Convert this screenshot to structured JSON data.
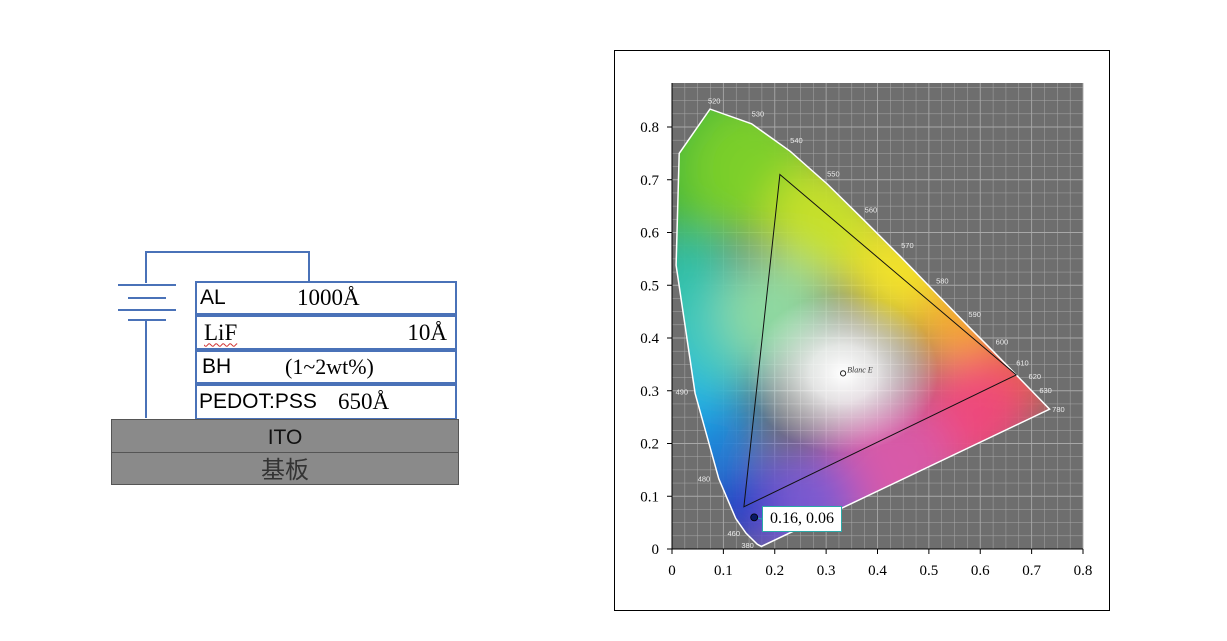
{
  "device_stack": {
    "layers": [
      {
        "name": "AL",
        "thickness": "1000Å"
      },
      {
        "name": "LiF",
        "thickness": "10Å"
      },
      {
        "name": "BH",
        "thickness": "(1~2wt%)"
      },
      {
        "name": "PEDOT:PSS",
        "thickness": "650Å"
      }
    ],
    "ito_label": "ITO",
    "substrate_label": "基板"
  },
  "chart_data": {
    "type": "scatter",
    "title": "",
    "xlabel": "",
    "ylabel": "",
    "xlim": [
      0,
      0.8
    ],
    "ylim": [
      0,
      0.85
    ],
    "xticks": [
      "0",
      "0.1",
      "0.2",
      "0.3",
      "0.4",
      "0.5",
      "0.6",
      "0.7",
      "0.8"
    ],
    "yticks": [
      "0",
      "0.1",
      "0.2",
      "0.3",
      "0.4",
      "0.5",
      "0.6",
      "0.7",
      "0.8"
    ],
    "grid": true,
    "gamut_triangle": [
      [
        0.21,
        0.71
      ],
      [
        0.67,
        0.33
      ],
      [
        0.14,
        0.08
      ]
    ],
    "white_point": {
      "x": 0.333,
      "y": 0.333,
      "label": "Blanc E"
    },
    "point": {
      "x": 0.16,
      "y": 0.06,
      "label": "0.16, 0.06"
    },
    "spectral_locus": [
      [
        0.174,
        0.005
      ],
      [
        0.166,
        0.009
      ],
      [
        0.144,
        0.03
      ],
      [
        0.124,
        0.058
      ],
      [
        0.091,
        0.133
      ],
      [
        0.045,
        0.295
      ],
      [
        0.008,
        0.538
      ],
      [
        0.014,
        0.75
      ],
      [
        0.074,
        0.834
      ],
      [
        0.155,
        0.806
      ],
      [
        0.23,
        0.754
      ],
      [
        0.302,
        0.692
      ],
      [
        0.373,
        0.624
      ],
      [
        0.444,
        0.555
      ],
      [
        0.512,
        0.487
      ],
      [
        0.575,
        0.424
      ],
      [
        0.627,
        0.373
      ],
      [
        0.666,
        0.334
      ],
      [
        0.692,
        0.308
      ],
      [
        0.735,
        0.265
      ]
    ],
    "wavelength_labels": [
      {
        "text": "520",
        "x": 0.07,
        "y": 0.845
      },
      {
        "text": "530",
        "x": 0.155,
        "y": 0.82
      },
      {
        "text": "540",
        "x": 0.23,
        "y": 0.77
      },
      {
        "text": "550",
        "x": 0.302,
        "y": 0.706
      },
      {
        "text": "560",
        "x": 0.375,
        "y": 0.638
      },
      {
        "text": "570",
        "x": 0.446,
        "y": 0.571
      },
      {
        "text": "580",
        "x": 0.514,
        "y": 0.503
      },
      {
        "text": "590",
        "x": 0.577,
        "y": 0.44
      },
      {
        "text": "600",
        "x": 0.63,
        "y": 0.388
      },
      {
        "text": "610",
        "x": 0.67,
        "y": 0.348
      },
      {
        "text": "620",
        "x": 0.694,
        "y": 0.322
      },
      {
        "text": "630",
        "x": 0.715,
        "y": 0.296
      },
      {
        "text": "780",
        "x": 0.74,
        "y": 0.26
      },
      {
        "text": "490",
        "x": 0.007,
        "y": 0.293
      },
      {
        "text": "480",
        "x": 0.05,
        "y": 0.128
      },
      {
        "text": "460",
        "x": 0.108,
        "y": 0.025
      },
      {
        "text": "380",
        "x": 0.135,
        "y": 0.002
      }
    ]
  }
}
